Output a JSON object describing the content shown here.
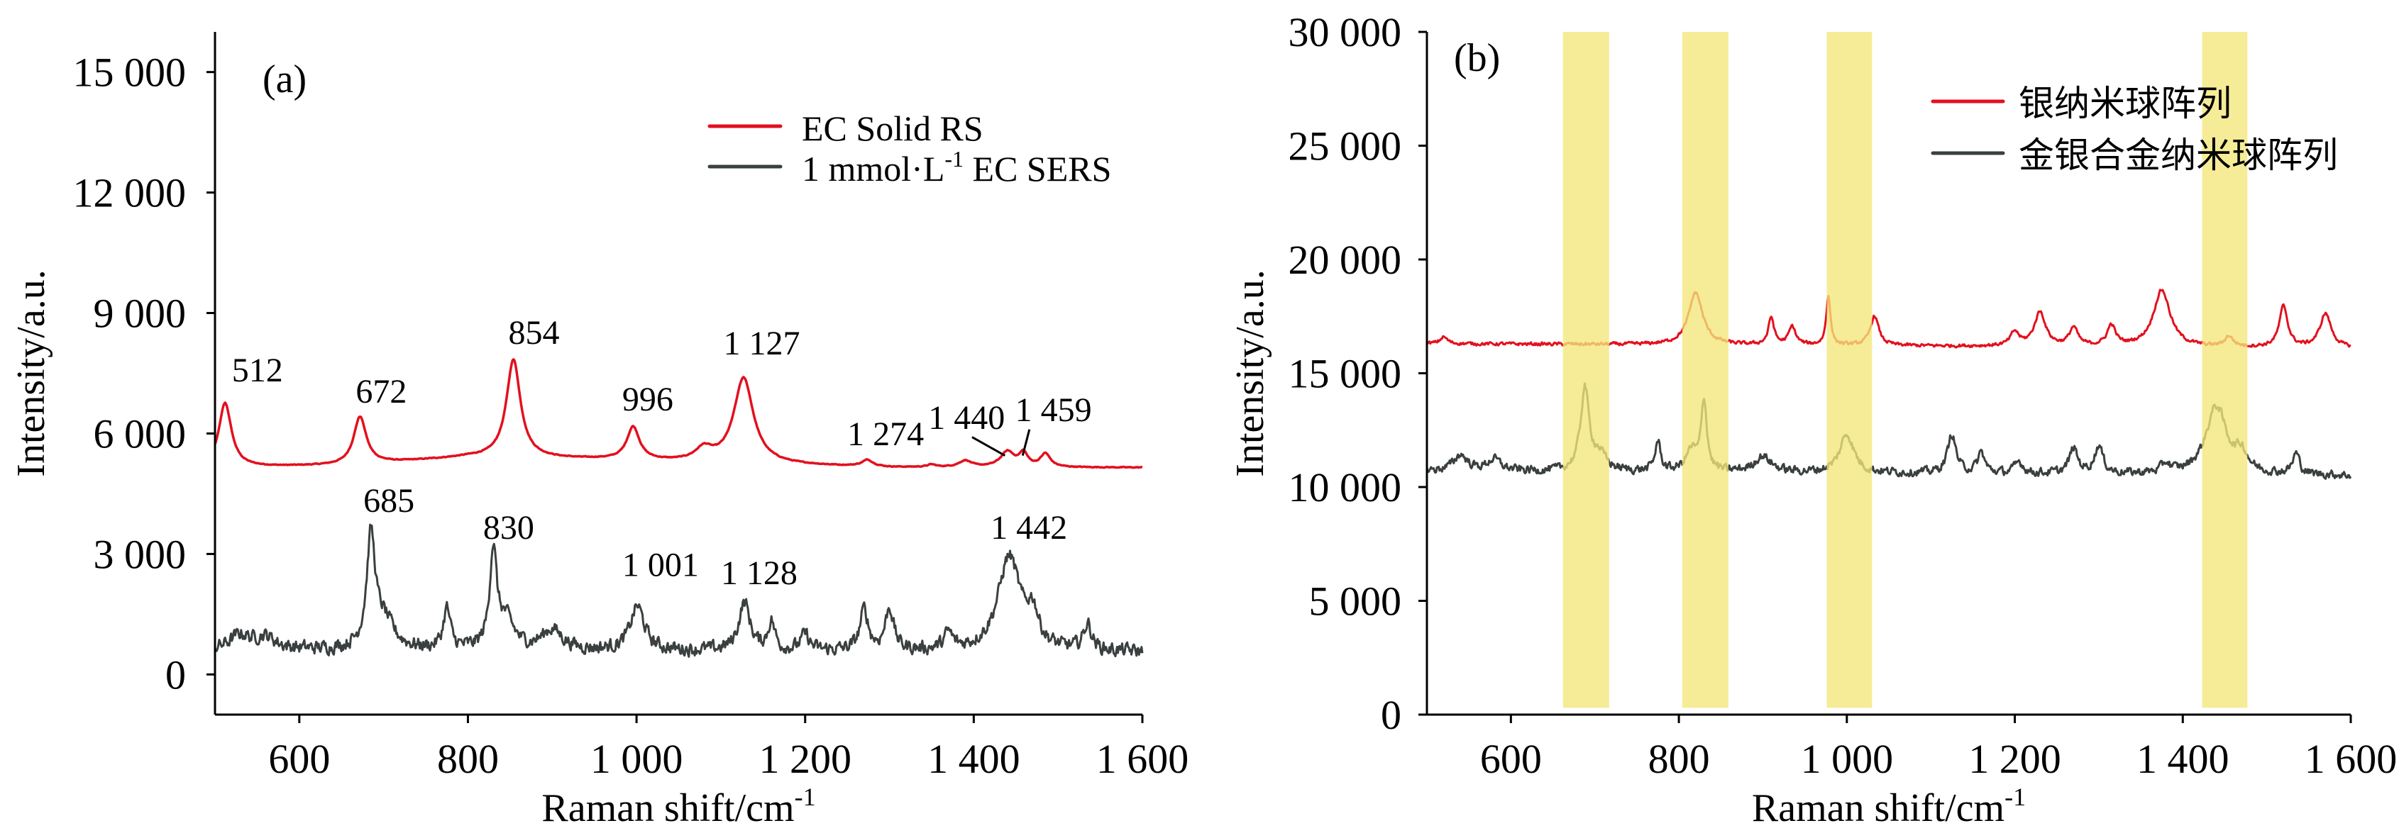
{
  "colors": {
    "red": "#e3101e",
    "dark": "#3a3f3f",
    "band": "#f3e77a"
  },
  "chart_data": [
    {
      "type": "line",
      "panel_label": "(a)",
      "xlabel": "Raman shift/cm",
      "xlabel_sup": "-1",
      "ylabel": "Intensity/a.u.",
      "xlim": [
        500,
        1600
      ],
      "ylim": [
        -1000,
        16000
      ],
      "xticks": [
        600,
        800,
        1000,
        1200,
        1400,
        1600
      ],
      "xtick_labels": [
        "600",
        "800",
        "1 000",
        "1 200",
        "1 400",
        "1 600"
      ],
      "yticks": [
        0,
        3000,
        6000,
        9000,
        12000,
        15000
      ],
      "ytick_labels": [
        "0",
        "3 000",
        "6 000",
        "9 000",
        "12 000",
        "15 000"
      ],
      "legend_placement": "top-right",
      "series": [
        {
          "name": "EC Solid RS",
          "legend_prefix": "EC Solid RS",
          "legend_sup": "",
          "legend_suffix": "",
          "color": "#e3101e",
          "baseline": [
            [
              500,
              5150
            ],
            [
              650,
              5200
            ],
            [
              800,
              5400
            ],
            [
              950,
              5350
            ],
            [
              1100,
              5250
            ],
            [
              1300,
              5150
            ],
            [
              1600,
              5150
            ]
          ],
          "noise": 15,
          "peaks": [
            [
              512,
              1600,
              9
            ],
            [
              672,
              1180,
              9
            ],
            [
              854,
              2450,
              10
            ],
            [
              996,
              820,
              9
            ],
            [
              1080,
              300,
              12
            ],
            [
              1127,
              2130,
              14
            ],
            [
              1274,
              160,
              8
            ],
            [
              1350,
              60,
              6
            ],
            [
              1390,
              160,
              9
            ],
            [
              1440,
              380,
              10
            ],
            [
              1459,
              330,
              6
            ],
            [
              1485,
              330,
              7
            ]
          ]
        },
        {
          "name": "1 mmol·L-1 EC SERS",
          "legend_prefix": "1 mmol·L",
          "legend_sup": "-1",
          "legend_suffix": " EC SERS",
          "color": "#3a3f3f",
          "baseline": [
            [
              500,
              600
            ],
            [
              1600,
              550
            ]
          ],
          "noise": 260,
          "peaks": [
            [
              530,
              350,
              15
            ],
            [
              560,
              300,
              15
            ],
            [
              685,
              2700,
              6
            ],
            [
              700,
              700,
              15
            ],
            [
              775,
              1000,
              5
            ],
            [
              830,
              2400,
              5
            ],
            [
              845,
              700,
              12
            ],
            [
              900,
              500,
              15
            ],
            [
              1001,
              1100,
              10
            ],
            [
              1128,
              1200,
              8
            ],
            [
              1160,
              700,
              5
            ],
            [
              1200,
              400,
              6
            ],
            [
              1270,
              1000,
              6
            ],
            [
              1300,
              1050,
              6
            ],
            [
              1370,
              400,
              6
            ],
            [
              1442,
              2350,
              16
            ],
            [
              1470,
              800,
              8
            ],
            [
              1535,
              650,
              6
            ]
          ]
        }
      ],
      "annotations": [
        {
          "text": "512",
          "x": 520,
          "y": 7300
        },
        {
          "text": "672",
          "x": 667,
          "y": 6770
        },
        {
          "text": "854",
          "x": 848,
          "y": 8230
        },
        {
          "text": "996",
          "x": 983,
          "y": 6570
        },
        {
          "text": "1 127",
          "x": 1103,
          "y": 7970
        },
        {
          "text": "1 274",
          "x": 1250,
          "y": 5710
        },
        {
          "text": "1 440",
          "x": 1346,
          "y": 6110,
          "leader": [
            [
              1398,
              5910
            ],
            [
              1437,
              5450
            ]
          ]
        },
        {
          "text": "1 459",
          "x": 1449,
          "y": 6310,
          "leader": [
            [
              1466,
              6100
            ],
            [
              1458,
              5450
            ]
          ]
        },
        {
          "text": "685",
          "x": 676,
          "y": 4050
        },
        {
          "text": "830",
          "x": 818,
          "y": 3380
        },
        {
          "text": "1 001",
          "x": 983,
          "y": 2450
        },
        {
          "text": "1 128",
          "x": 1100,
          "y": 2250
        },
        {
          "text": "1 442",
          "x": 1420,
          "y": 3380
        }
      ]
    },
    {
      "type": "line",
      "panel_label": "(b)",
      "xlabel": "Raman shift/cm",
      "xlabel_sup": "-1",
      "ylabel": "Intensity/a.u.",
      "xlim": [
        500,
        1600
      ],
      "ylim": [
        0,
        30000
      ],
      "xticks": [
        600,
        800,
        1000,
        1200,
        1400,
        1600
      ],
      "xtick_labels": [
        "600",
        "800",
        "1 000",
        "1 200",
        "1 400",
        "1 600"
      ],
      "yticks": [
        0,
        5000,
        10000,
        15000,
        20000,
        25000,
        30000
      ],
      "ytick_labels": [
        "0",
        "5 000",
        "10 000",
        "15 000",
        "20 000",
        "25 000",
        "30 000"
      ],
      "legend_placement": "top-right",
      "highlight_bands": [
        [
          662,
          717
        ],
        [
          804,
          859
        ],
        [
          976,
          1030
        ],
        [
          1423,
          1477
        ]
      ],
      "series": [
        {
          "name": "银纳米球阵列",
          "legend_prefix": "银纳米球阵列",
          "legend_sup": "",
          "legend_suffix": "",
          "color": "#e3101e",
          "baseline": [
            [
              500,
              16300
            ],
            [
              1600,
              16100
            ]
          ],
          "noise": 110,
          "peaks": [
            [
              520,
              300,
              5
            ],
            [
              820,
              2300,
              10
            ],
            [
              910,
              1200,
              4
            ],
            [
              935,
              800,
              5
            ],
            [
              978,
              2200,
              3
            ],
            [
              1033,
              1300,
              6
            ],
            [
              1200,
              600,
              6
            ],
            [
              1230,
              1500,
              8
            ],
            [
              1270,
              800,
              6
            ],
            [
              1315,
              900,
              6
            ],
            [
              1375,
              2500,
              12
            ],
            [
              1455,
              450,
              6
            ],
            [
              1520,
              1800,
              6
            ],
            [
              1570,
              1500,
              8
            ]
          ]
        },
        {
          "name": "金银合金纳米球阵列",
          "legend_prefix": "金银合金纳米球阵列",
          "legend_sup": "",
          "legend_suffix": "",
          "color": "#3a3f3f",
          "baseline": [
            [
              500,
              10700
            ],
            [
              1600,
              10500
            ]
          ],
          "noise": 280,
          "peaks": [
            [
              540,
              700,
              10
            ],
            [
              580,
              500,
              10
            ],
            [
              688,
              3600,
              6
            ],
            [
              705,
              700,
              10
            ],
            [
              775,
              1300,
              4
            ],
            [
              830,
              3100,
              4
            ],
            [
              815,
              900,
              8
            ],
            [
              900,
              700,
              12
            ],
            [
              1000,
              1700,
              10
            ],
            [
              1125,
              1700,
              6
            ],
            [
              1160,
              900,
              5
            ],
            [
              1205,
              500,
              6
            ],
            [
              1270,
              1100,
              6
            ],
            [
              1300,
              1200,
              6
            ],
            [
              1380,
              400,
              6
            ],
            [
              1440,
              3000,
              15
            ],
            [
              1470,
              800,
              8
            ],
            [
              1535,
              900,
              5
            ]
          ]
        }
      ]
    }
  ]
}
